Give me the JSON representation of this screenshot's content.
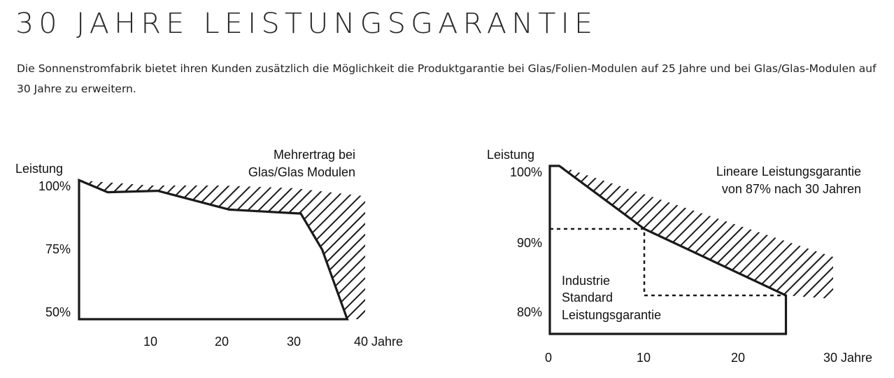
{
  "header": {
    "title": "30 JAHRE LEISTUNGSGARANTIE",
    "intro": "Die Sonnenstromfabrik bietet ihren Kunden zusätzlich die Möglichkeit die Produktgarantie bei Glas/Folien-Modulen auf 25 Jahre und bei Glas/Glas-Modulen auf 30 Jahre zu erweitern."
  },
  "colors": {
    "line": "#1a1a1a",
    "text": "#111111",
    "background": "#ffffff"
  },
  "chart_data": [
    {
      "type": "area",
      "ylabel": "Leistung",
      "xlabel_suffix": "Jahre",
      "xticks": [
        10,
        20,
        30,
        40
      ],
      "xtick_labels": [
        "10",
        "20",
        "30",
        "40 Jahre"
      ],
      "yticks": [
        50,
        75,
        100
      ],
      "ytick_labels": [
        "50%",
        "75%",
        "100%"
      ],
      "xlim": [
        0,
        40
      ],
      "ylim": [
        50,
        100
      ],
      "annotation": [
        "Mehrertrag bei",
        "Glas/Glas Modulen"
      ],
      "series": [
        {
          "values_x": [
            0,
            4,
            11,
            21,
            31,
            34,
            37.5
          ],
          "values_y": [
            102,
            97.5,
            98,
            91,
            89.5,
            76,
            50
          ]
        },
        {
          "values_x": [
            0,
            10,
            20,
            30,
            40,
            40
          ],
          "values_y": [
            102,
            100,
            100,
            99,
            96,
            50
          ]
        }
      ]
    },
    {
      "type": "area",
      "ylabel": "Leistung",
      "xlabel_suffix": "Jahre",
      "xticks": [
        0,
        10,
        20,
        30
      ],
      "xtick_labels": [
        "0",
        "10",
        "20",
        "30 Jahre"
      ],
      "yticks": [
        80,
        90,
        100
      ],
      "ytick_labels": [
        "80%",
        "90%",
        "100%"
      ],
      "xlim": [
        0,
        30
      ],
      "ylim": [
        76,
        100
      ],
      "annotation": [
        "Lineare Leistungsgarantie",
        "von 87% nach 30 Jahren"
      ],
      "inner_label": [
        "Industrie",
        "Standard",
        "Leistungsgarantie"
      ],
      "series": [
        {
          "values_x": [
            0,
            1,
            10,
            25,
            25
          ],
          "values_y": [
            100,
            100,
            91,
            81.5,
            76
          ]
        },
        {
          "values_x": [
            1,
            30,
            30
          ],
          "values_y": [
            100,
            87,
            81
          ]
        },
        {
          "values_x": [
            0,
            10,
            10,
            25
          ],
          "values_y": [
            91,
            91,
            81.5,
            81.5
          ]
        }
      ]
    }
  ]
}
